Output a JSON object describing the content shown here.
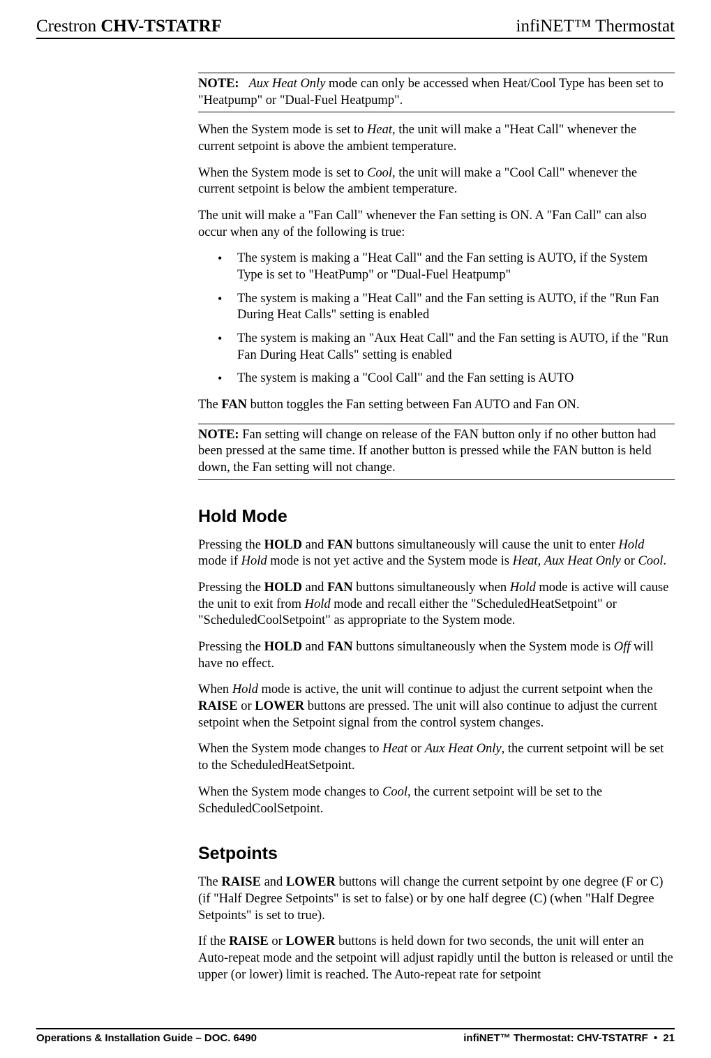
{
  "header": {
    "left_prefix": "Crestron ",
    "left_bold": "CHV-TSTATRF",
    "right": "infiNET™ Thermostat"
  },
  "note1": {
    "label": "NOTE:",
    "italic1": "Aux Heat Only",
    "text1_after_italic": " mode can only be accessed when Heat/Cool Type has been set to \"Heatpump\" or \"Dual-Fuel Heatpump\"."
  },
  "p1": {
    "a": "When the System mode is set to ",
    "i": "Heat",
    "b": ", the unit will make a \"Heat Call\" whenever the current setpoint is above the ambient temperature."
  },
  "p2": {
    "a": "When the System mode is set to ",
    "i": "Cool",
    "b": ", the unit will make a \"Cool Call\" whenever the current setpoint is below the ambient temperature."
  },
  "p3": "The unit will make a \"Fan Call\" whenever the Fan setting is ON. A \"Fan Call\" can also occur when any of the following is true:",
  "bullets": [
    "The system is making a \"Heat Call\" and the Fan setting is AUTO, if the System Type is set to \"HeatPump\" or \"Dual-Fuel Heatpump\"",
    "The system is making a \"Heat Call\" and the Fan setting is AUTO, if the \"Run Fan During Heat Calls\" setting is enabled",
    "The system is making an \"Aux Heat Call\" and the Fan setting is AUTO, if the \"Run Fan During Heat Calls\" setting is enabled",
    "The system is making a \"Cool Call\" and the Fan setting is AUTO"
  ],
  "p4": {
    "a": "The ",
    "b1": "FAN",
    "b": " button toggles the Fan setting between Fan AUTO and Fan ON."
  },
  "note2": {
    "label": "NOTE:",
    "a": "  Fan setting will change on release of the ",
    "b1": "FAN",
    "b": " button only if no other button had been pressed at the same time. If another button is pressed while the ",
    "b2": "FAN",
    "c": " button is held down, the Fan setting will not change."
  },
  "hold": {
    "title": "Hold Mode",
    "p1": {
      "a": "Pressing the ",
      "b1": "HOLD",
      "b": " and ",
      "b2": "FAN",
      "c": " buttons simultaneously will cause the unit to enter ",
      "i1": "Hold",
      "d": " mode if ",
      "i2": "Hold",
      "e": " mode is not yet active and the System mode is ",
      "i3": "Heat",
      "f": ", ",
      "i4": "Aux Heat Only",
      "g": " or ",
      "i5": "Cool",
      "h": "."
    },
    "p2": {
      "a": "Pressing the ",
      "b1": "HOLD",
      "b": " and ",
      "b2": "FAN",
      "c": " buttons simultaneously when ",
      "i1": "Hold",
      "d": " mode is active will cause the unit to exit from ",
      "i2": "Hold",
      "e": " mode and recall either the \"ScheduledHeatSetpoint\" or \"ScheduledCoolSetpoint\" as appropriate to the System mode."
    },
    "p3": {
      "a": "Pressing the ",
      "b1": "HOLD",
      "b": " and ",
      "b2": "FAN",
      "c": " buttons simultaneously when the System mode is ",
      "i1": "Off",
      "d": " will have no effect."
    },
    "p4": {
      "a": "When ",
      "i1": "Hold",
      "b": " mode is active, the unit will continue to adjust the current setpoint when the ",
      "b1": "RAISE",
      "c": " or ",
      "b2": "LOWER",
      "d": " buttons are pressed. The unit will also continue to adjust the current setpoint when the Setpoint signal from the control system changes."
    },
    "p5": {
      "a": "When the System mode changes to ",
      "i1": "Heat",
      "b": " or ",
      "i2": "Aux Heat Only",
      "c": ", the current setpoint will be set to the ScheduledHeatSetpoint."
    },
    "p6": {
      "a": "When the System mode changes to ",
      "i1": "Cool",
      "b": ", the current setpoint will be set to the ScheduledCoolSetpoint."
    }
  },
  "setpoints": {
    "title": "Setpoints",
    "p1": {
      "a": "The ",
      "b1": "RAISE",
      "b": " and ",
      "b2": "LOWER",
      "c": " buttons will change the current setpoint by one degree (F or C) (if \"Half Degree Setpoints\" is set to false) or by one half degree (C) (when \"Half Degree Setpoints\" is set to true)."
    },
    "p2": {
      "a": "If the ",
      "b1": "RAISE",
      "b": " or ",
      "b2": "LOWER",
      "c": " buttons is held down for two seconds, the unit will enter an Auto-repeat mode and the setpoint will adjust rapidly until the button is released or until the upper (or lower) limit is reached. The Auto-repeat rate for setpoint"
    }
  },
  "footer": {
    "left": "Operations & Installation Guide – DOC. 6490",
    "right_prefix": "infiNET™ Thermostat: CHV-TSTATRF ",
    "right_dot": "•",
    "right_page": "  21"
  }
}
